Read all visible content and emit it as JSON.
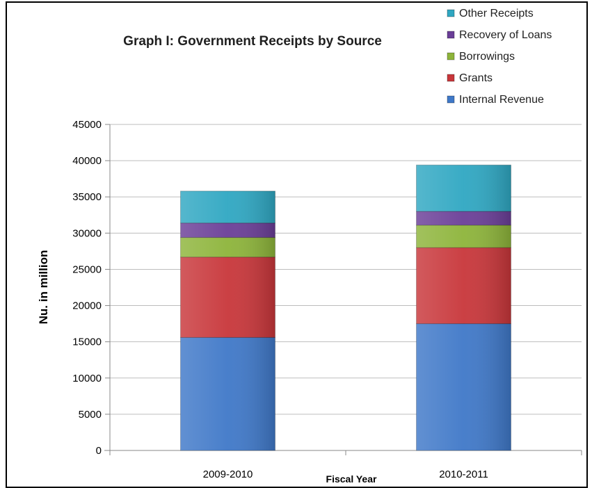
{
  "chart_data": {
    "type": "bar",
    "stacked": true,
    "title": "Graph I: Government Receipts by Source",
    "xlabel": "Fiscal Year",
    "ylabel": "Nu. in million",
    "ylim": [
      0,
      45000
    ],
    "yticks": [
      0,
      5000,
      10000,
      15000,
      20000,
      25000,
      30000,
      35000,
      40000,
      45000
    ],
    "grid": true,
    "legend_position": "top-right",
    "categories": [
      "2009-2010",
      "2010-2011"
    ],
    "series": [
      {
        "name": "Internal Revenue",
        "color": "#3f78c8",
        "values": [
          15600,
          17500
        ]
      },
      {
        "name": "Grants",
        "color": "#c8363a",
        "values": [
          11100,
          10500
        ]
      },
      {
        "name": "Borrowings",
        "color": "#8db43a",
        "values": [
          2700,
          3100
        ]
      },
      {
        "name": "Recovery of Loans",
        "color": "#6a3e97",
        "values": [
          2000,
          1900
        ]
      },
      {
        "name": "Other Receipts",
        "color": "#2fa7c2",
        "values": [
          4400,
          6400
        ]
      }
    ],
    "legend_order": [
      "Other Receipts",
      "Recovery of Loans",
      "Borrowings",
      "Grants",
      "Internal Revenue"
    ]
  }
}
